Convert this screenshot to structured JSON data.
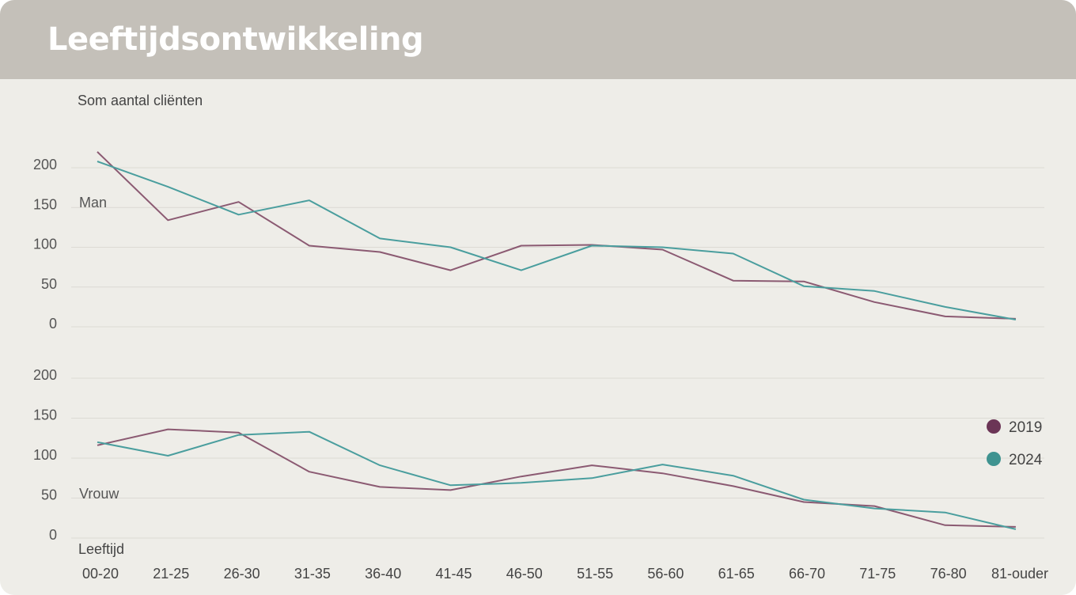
{
  "header": {
    "title": "Leeftijdsontwikkeling"
  },
  "chart_data": {
    "type": "line",
    "ylabel": "Som aantal cliënten",
    "xlabel": "Leeftijd",
    "categories": [
      "00-20",
      "21-25",
      "26-30",
      "31-35",
      "36-40",
      "41-45",
      "46-50",
      "51-55",
      "56-60",
      "61-65",
      "66-70",
      "71-75",
      "76-80",
      "81-ouder"
    ],
    "yticks": [
      "0",
      "50",
      "100",
      "150",
      "200"
    ],
    "grid": true,
    "legend_position": "right",
    "colors": {
      "2019": "#8b5a72",
      "2024": "#4a9e9e",
      "legend_2019": "#6b3556",
      "legend_2024": "#3f9390"
    },
    "legend": [
      {
        "name": "2019",
        "color": "#6b3556"
      },
      {
        "name": "2024",
        "color": "#3f9390"
      }
    ],
    "panels": [
      {
        "label": "Man",
        "ylim": [
          0,
          200
        ],
        "series": [
          {
            "name": "2019",
            "values": [
              220,
              134,
              157,
              102,
              94,
              71,
              102,
              103,
              97,
              58,
              57,
              31,
              13,
              10
            ]
          },
          {
            "name": "2024",
            "values": [
              208,
              176,
              141,
              159,
              111,
              100,
              71,
              102,
              100,
              92,
              51,
              45,
              25,
              9
            ]
          }
        ]
      },
      {
        "label": "Vrouw",
        "ylim": [
          0,
          200
        ],
        "series": [
          {
            "name": "2019",
            "values": [
              116,
              136,
              132,
              83,
              64,
              60,
              77,
              91,
              81,
              65,
              45,
              40,
              16,
              14
            ]
          },
          {
            "name": "2024",
            "values": [
              120,
              103,
              129,
              133,
              91,
              66,
              69,
              75,
              92,
              78,
              48,
              37,
              32,
              11
            ]
          }
        ]
      }
    ]
  }
}
